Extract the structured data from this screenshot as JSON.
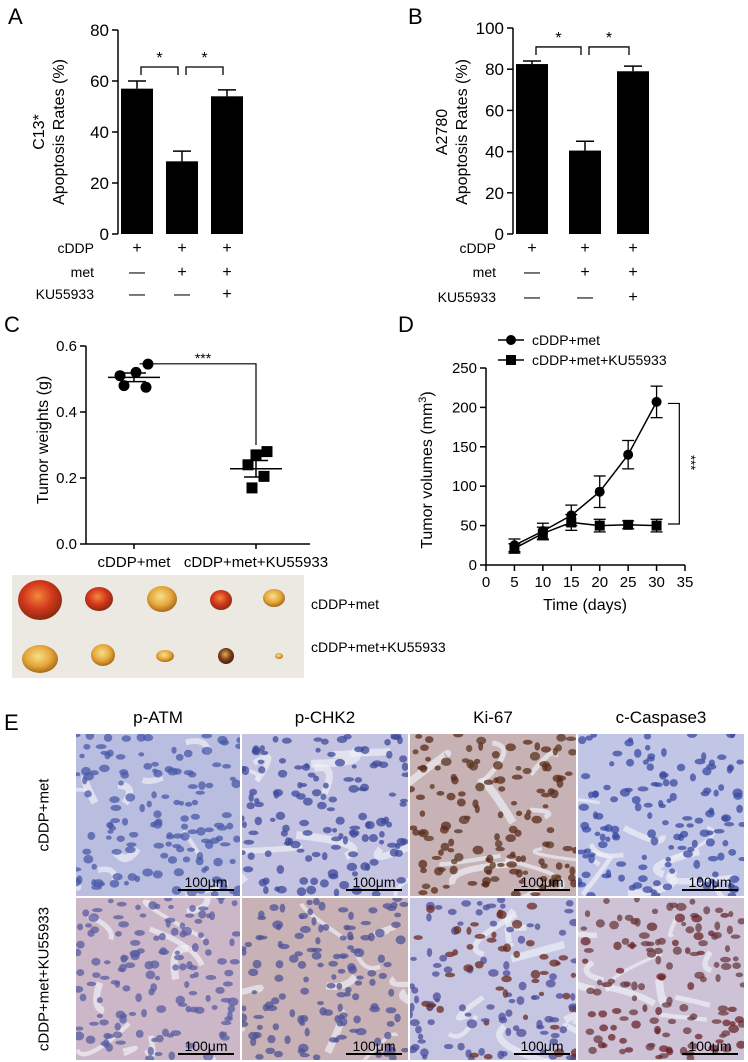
{
  "figure": {
    "panel_labels": [
      "A",
      "B",
      "C",
      "D",
      "E"
    ]
  },
  "chart_data": [
    {
      "panel": "A",
      "type": "bar",
      "ylabel_line1": "C13*",
      "ylabel_line2": "Apoptosis Rates (%)",
      "ylim": [
        0,
        80
      ],
      "yticks": [
        0,
        20,
        40,
        60,
        80
      ],
      "values": [
        57,
        28.5,
        54
      ],
      "errors": [
        3,
        4,
        2.5
      ],
      "significance": [
        "*",
        "*"
      ],
      "treatments": [
        {
          "name": "cDDP",
          "marks": [
            "+",
            "+",
            "+"
          ]
        },
        {
          "name": "met",
          "marks": [
            "—",
            "+",
            "+"
          ]
        },
        {
          "name": "KU55933",
          "marks": [
            "—",
            "—",
            "+"
          ]
        }
      ]
    },
    {
      "panel": "B",
      "type": "bar",
      "ylabel_line1": "A2780",
      "ylabel_line2": "Apoptosis Rates (%)",
      "ylim": [
        0,
        100
      ],
      "yticks": [
        0,
        20,
        40,
        60,
        80,
        100
      ],
      "values": [
        82.5,
        40.5,
        79
      ],
      "errors": [
        1.5,
        4.5,
        2.5
      ],
      "significance": [
        "*",
        "*"
      ],
      "treatments": [
        {
          "name": "cDDP",
          "marks": [
            "+",
            "+",
            "+"
          ]
        },
        {
          "name": "met",
          "marks": [
            "—",
            "+",
            "+"
          ]
        },
        {
          "name": "KU55933",
          "marks": [
            "—",
            "—",
            "+"
          ]
        }
      ]
    },
    {
      "panel": "C",
      "type": "scatter",
      "ylabel": "Tumor weights (g)",
      "ylim": [
        0,
        0.6
      ],
      "yticks": [
        "0.0",
        "0.2",
        "0.4",
        "0.6"
      ],
      "categories": [
        "cDDP+met",
        "cDDP+met+KU55933"
      ],
      "groups": [
        {
          "name": "cDDP+met",
          "marker": "circle",
          "points": [
            0.52,
            0.545,
            0.51,
            0.48,
            0.475
          ],
          "mean": 0.505,
          "sem": 0.013
        },
        {
          "name": "cDDP+met+KU55933",
          "marker": "square",
          "points": [
            0.27,
            0.28,
            0.24,
            0.205,
            0.17
          ],
          "mean": 0.228,
          "sem": 0.025
        }
      ],
      "significance": "***"
    },
    {
      "panel": "D",
      "type": "line",
      "xlabel": "Time (days)",
      "ylabel": "Tumor volumes (mm",
      "ylabel_sup": "3",
      "ylabel_end": ")",
      "xlim": [
        0,
        35
      ],
      "ylim": [
        0,
        250
      ],
      "xticks": [
        0,
        5,
        10,
        15,
        20,
        25,
        30,
        35
      ],
      "yticks": [
        0,
        50,
        100,
        150,
        200,
        250
      ],
      "x": [
        5,
        10,
        15,
        20,
        25,
        30
      ],
      "series": [
        {
          "name": "cDDP+met",
          "marker": "circle",
          "values": [
            25,
            43,
            63,
            93,
            140,
            207
          ],
          "errors": [
            8,
            10,
            13,
            20,
            18,
            20
          ]
        },
        {
          "name": "cDDP+met+KU55933",
          "marker": "square",
          "values": [
            21,
            40,
            54,
            50,
            51,
            50
          ],
          "errors": [
            6,
            8,
            10,
            8,
            5,
            8
          ]
        }
      ],
      "significance": "***"
    }
  ],
  "tumor_photo": {
    "rows": [
      "cDDP+met",
      "cDDP+met+KU55933"
    ]
  },
  "histology": {
    "columns": [
      "p-ATM",
      "p-CHK2",
      "Ki-67",
      "c-Caspase3"
    ],
    "rows": [
      "cDDP+met",
      "cDDP+met+KU55933"
    ],
    "scale_bar": "100μm"
  }
}
